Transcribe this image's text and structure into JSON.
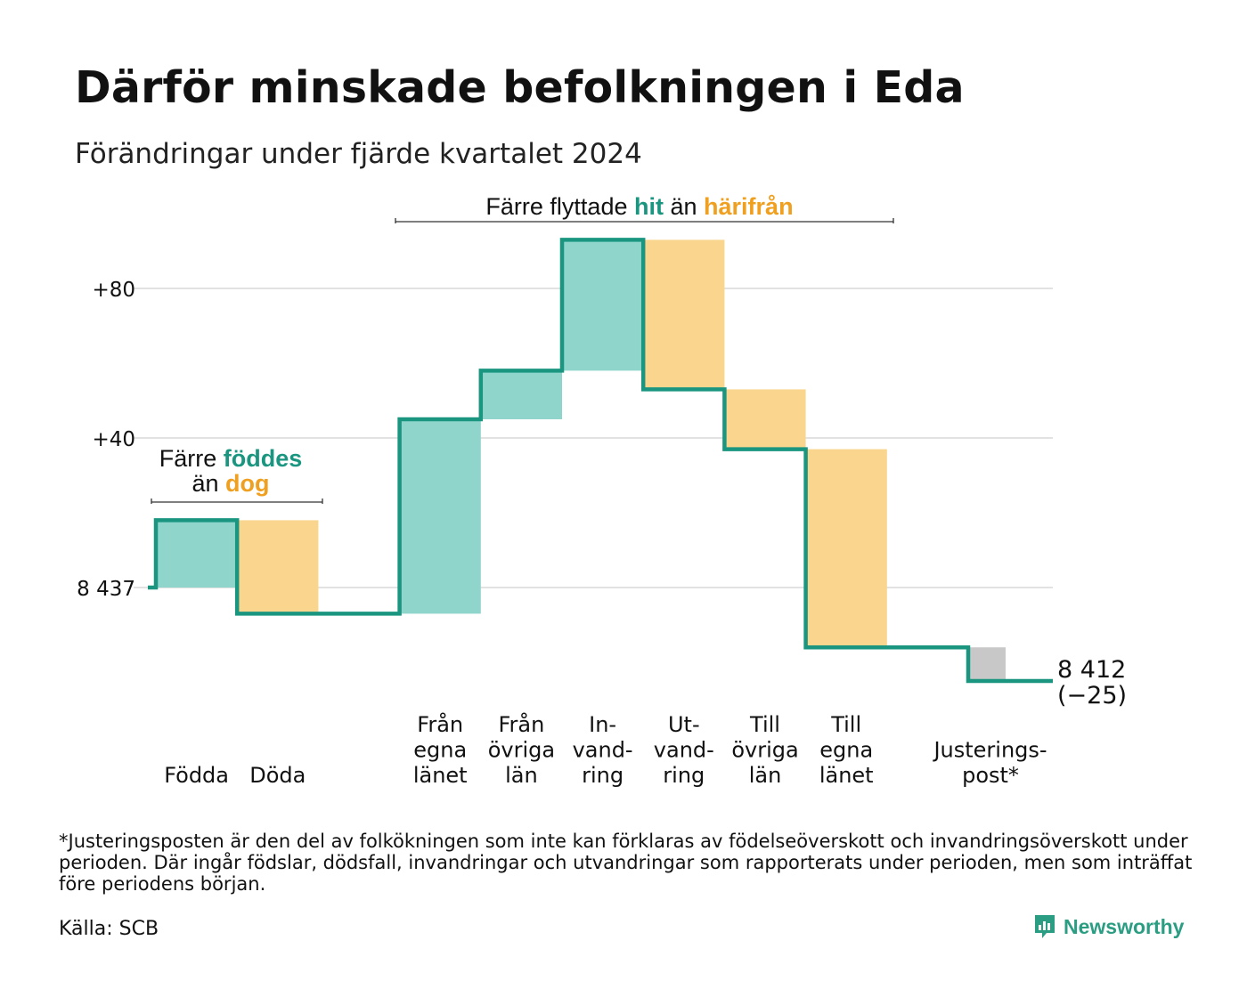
{
  "title": "Därför minskade befolkningen i Eda",
  "subtitle": "Förändringar under fjärde kvartalet 2024",
  "chart_data": {
    "type": "waterfall",
    "start_value": 8437,
    "end_label": "8 412",
    "end_change_label": "(−25)",
    "y_ticks": [
      {
        "value": 0,
        "label": "8 437"
      },
      {
        "value": 40,
        "label": "+40"
      },
      {
        "value": 80,
        "label": "+80"
      }
    ],
    "grid": true,
    "steps": [
      {
        "label": [
          "Födda"
        ],
        "delta": 18,
        "kind": "in"
      },
      {
        "label": [
          "Döda"
        ],
        "delta": -25,
        "kind": "out"
      },
      {
        "label": [],
        "delta": 0,
        "kind": "gap"
      },
      {
        "label": [
          "Från",
          "egna",
          "länet"
        ],
        "delta": 52,
        "kind": "in"
      },
      {
        "label": [
          "Från",
          "övriga",
          "län"
        ],
        "delta": 13,
        "kind": "in"
      },
      {
        "label": [
          "In-",
          "vand-",
          "ring"
        ],
        "delta": 35,
        "kind": "in"
      },
      {
        "label": [
          "Ut-",
          "vand-",
          "ring"
        ],
        "delta": -40,
        "kind": "out"
      },
      {
        "label": [
          "Till",
          "övriga",
          "län"
        ],
        "delta": -16,
        "kind": "out"
      },
      {
        "label": [
          "Till",
          "egna",
          "länet"
        ],
        "delta": -53,
        "kind": "out"
      },
      {
        "label": [],
        "delta": 0,
        "kind": "gap"
      },
      {
        "label": [
          "Justerings-",
          "post*"
        ],
        "delta": -9,
        "kind": "adjust"
      }
    ],
    "annotations": [
      {
        "id": "birth",
        "parts": [
          {
            "line": 0,
            "text": "Färre ",
            "style": "plain"
          },
          {
            "line": 0,
            "text": "föddes",
            "style": "in"
          },
          {
            "line": 1,
            "text": "än ",
            "style": "plain"
          },
          {
            "line": 1,
            "text": "dog",
            "style": "out"
          }
        ]
      },
      {
        "id": "migration",
        "parts": [
          {
            "line": 0,
            "text": "Färre flyttade ",
            "style": "plain"
          },
          {
            "line": 0,
            "text": "hit",
            "style": "in"
          },
          {
            "line": 0,
            "text": " än ",
            "style": "plain"
          },
          {
            "line": 0,
            "text": "härifrån",
            "style": "out"
          }
        ]
      }
    ],
    "colors": {
      "in": "#8fd5cc",
      "out": "#fad58e",
      "adjust": "#c8c8c8",
      "line": "#1a9680",
      "in_text": "#1a9680",
      "out_text": "#f0a020",
      "grid": "#e2e2e2"
    }
  },
  "footnote": "*Justeringsposten är den del av folkökningen som inte kan förklaras av födelseöverskott och invandringsöverskott under perioden. Där ingår födslar, dödsfall, invandringar och utvandringar som rapporterats under perioden, men som inträffat före periodens början.",
  "source": "Källa: SCB",
  "brand": {
    "name": "Newsworthy",
    "icon": "chat-bar-chart-icon",
    "color": "#2a9d82"
  }
}
